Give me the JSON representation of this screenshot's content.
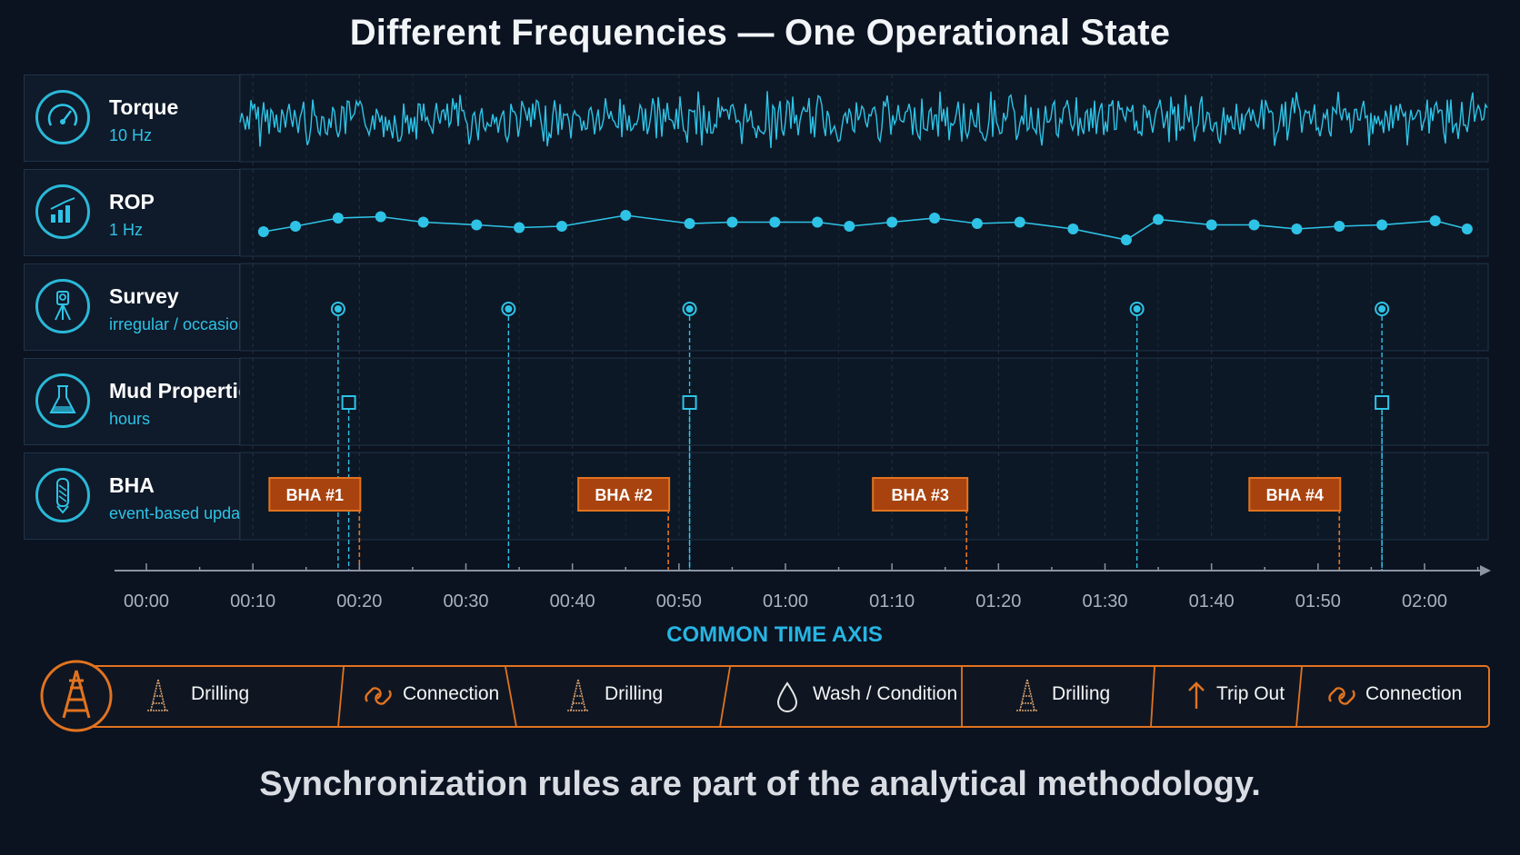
{
  "title": "Different Frequencies — One Operational State",
  "rows": [
    {
      "name": "Torque",
      "freq": "10 Hz",
      "icon": "gauge-icon"
    },
    {
      "name": "ROP",
      "freq": "1 Hz",
      "icon": "bar-chart-icon"
    },
    {
      "name": "Survey",
      "freq": "irregular / occasional",
      "icon": "survey-instrument-icon"
    },
    {
      "name": "Mud Properties",
      "freq": "hours",
      "icon": "flask-icon"
    },
    {
      "name": "BHA",
      "freq": "event-based update",
      "icon": "drill-bit-icon"
    }
  ],
  "chart_data": {
    "type": "timeline",
    "x_ticks": [
      "00:00",
      "00:10",
      "00:20",
      "00:30",
      "00:40",
      "00:50",
      "01:00",
      "01:10",
      "01:20",
      "01:30",
      "01:40",
      "01:50",
      "02:00"
    ],
    "xlim": [
      "00:00",
      "02:00"
    ],
    "grid": true,
    "rop_series": [
      [
        "00:11",
        0.48
      ],
      [
        "00:14",
        0.52
      ],
      [
        "00:18",
        0.58
      ],
      [
        "00:22",
        0.59
      ],
      [
        "00:26",
        0.55
      ],
      [
        "00:31",
        0.53
      ],
      [
        "00:35",
        0.51
      ],
      [
        "00:39",
        0.52
      ],
      [
        "00:45",
        0.6
      ],
      [
        "00:51",
        0.54
      ],
      [
        "00:55",
        0.55
      ],
      [
        "00:59",
        0.55
      ],
      [
        "01:03",
        0.55
      ],
      [
        "01:06",
        0.52
      ],
      [
        "01:10",
        0.55
      ],
      [
        "01:14",
        0.58
      ],
      [
        "01:18",
        0.54
      ],
      [
        "01:22",
        0.55
      ],
      [
        "01:27",
        0.5
      ],
      [
        "01:32",
        0.42
      ],
      [
        "01:35",
        0.57
      ],
      [
        "01:40",
        0.53
      ],
      [
        "01:44",
        0.53
      ],
      [
        "01:48",
        0.5
      ],
      [
        "01:52",
        0.52
      ],
      [
        "01:56",
        0.53
      ],
      [
        "02:01",
        0.56
      ],
      [
        "02:04",
        0.5
      ]
    ],
    "survey_times": [
      "00:18",
      "00:34",
      "00:51",
      "01:33",
      "01:56"
    ],
    "mud_times": [
      "00:19",
      "00:51",
      "01:56"
    ],
    "bha_events": [
      {
        "label": "BHA #1",
        "time": "00:20"
      },
      {
        "label": "BHA #2",
        "time": "00:49"
      },
      {
        "label": "BHA #3",
        "time": "01:17"
      },
      {
        "label": "BHA #4",
        "time": "01:52"
      }
    ],
    "axis_title": "COMMON TIME AXIS"
  },
  "states": [
    {
      "label": "Drilling",
      "icon": "derrick-icon"
    },
    {
      "label": "Connection",
      "icon": "link-icon"
    },
    {
      "label": "Drilling",
      "icon": "derrick-icon"
    },
    {
      "label": "Wash / Condition",
      "icon": "droplet-icon"
    },
    {
      "label": "Drilling",
      "icon": "derrick-icon"
    },
    {
      "label": "Trip Out",
      "icon": "arrow-up-icon"
    },
    {
      "label": "Connection",
      "icon": "link-icon"
    }
  ],
  "footer": "Synchronization rules are part of the analytical methodology.",
  "colors": {
    "background": "#0b1220",
    "cyan": "#2ec3e6",
    "orange": "#e2731f",
    "bha_fill": "#a8430f"
  }
}
